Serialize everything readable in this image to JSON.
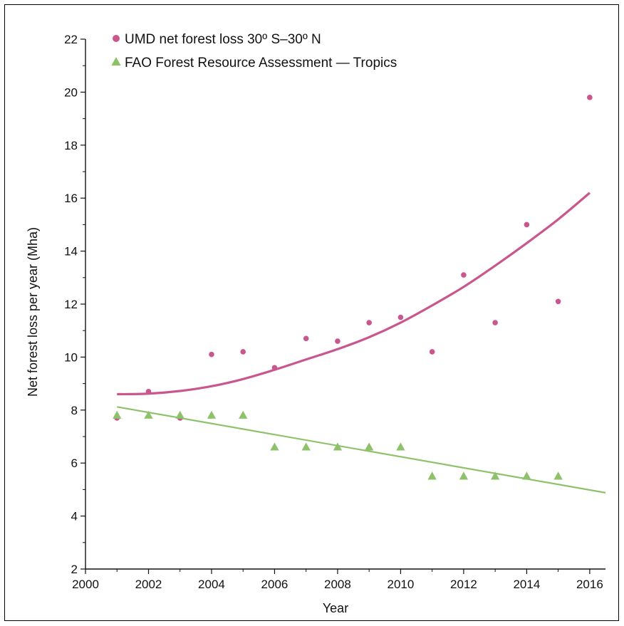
{
  "chart_data": {
    "type": "scatter",
    "title": "",
    "xlabel": "Year",
    "ylabel": "Net forest loss per year (Mha)",
    "xlim": [
      2000,
      2016.5
    ],
    "ylim": [
      2,
      22
    ],
    "x_ticks": [
      2000,
      2002,
      2004,
      2006,
      2008,
      2010,
      2012,
      2014,
      2016
    ],
    "y_ticks": [
      2,
      4,
      6,
      8,
      10,
      12,
      14,
      16,
      18,
      20,
      22
    ],
    "grid": false,
    "legend_position": "top-left",
    "series": [
      {
        "name": "UMD net forest loss 30º S–30º N",
        "marker": "circle",
        "color": "#c9578e",
        "x": [
          2001,
          2002,
          2003,
          2004,
          2005,
          2006,
          2007,
          2008,
          2009,
          2010,
          2011,
          2012,
          2013,
          2014,
          2015,
          2016
        ],
        "y": [
          7.7,
          8.7,
          7.7,
          10.1,
          10.2,
          9.6,
          10.7,
          10.6,
          11.3,
          11.5,
          10.2,
          13.1,
          11.3,
          15.0,
          12.1,
          19.8
        ],
        "trend": {
          "type": "curve",
          "x": [
            2001,
            2002,
            2003,
            2004,
            2005,
            2006,
            2007,
            2008,
            2009,
            2010,
            2011,
            2012,
            2013,
            2014,
            2015,
            2016
          ],
          "y": [
            8.6,
            8.62,
            8.72,
            8.9,
            9.17,
            9.52,
            9.91,
            10.3,
            10.75,
            11.3,
            11.95,
            12.65,
            13.45,
            14.3,
            15.2,
            16.2
          ]
        }
      },
      {
        "name": "FAO Forest Resource Assessment — Tropics",
        "marker": "triangle",
        "color": "#8dc26b",
        "x": [
          2001,
          2002,
          2003,
          2004,
          2005,
          2006,
          2007,
          2008,
          2009,
          2010,
          2011,
          2012,
          2013,
          2014,
          2015
        ],
        "y": [
          7.8,
          7.8,
          7.8,
          7.8,
          7.8,
          6.6,
          6.6,
          6.6,
          6.6,
          6.6,
          5.5,
          5.5,
          5.5,
          5.5,
          5.5
        ],
        "trend": {
          "type": "line",
          "x": [
            2001,
            2016.5
          ],
          "y": [
            8.12,
            4.88
          ]
        }
      }
    ]
  }
}
